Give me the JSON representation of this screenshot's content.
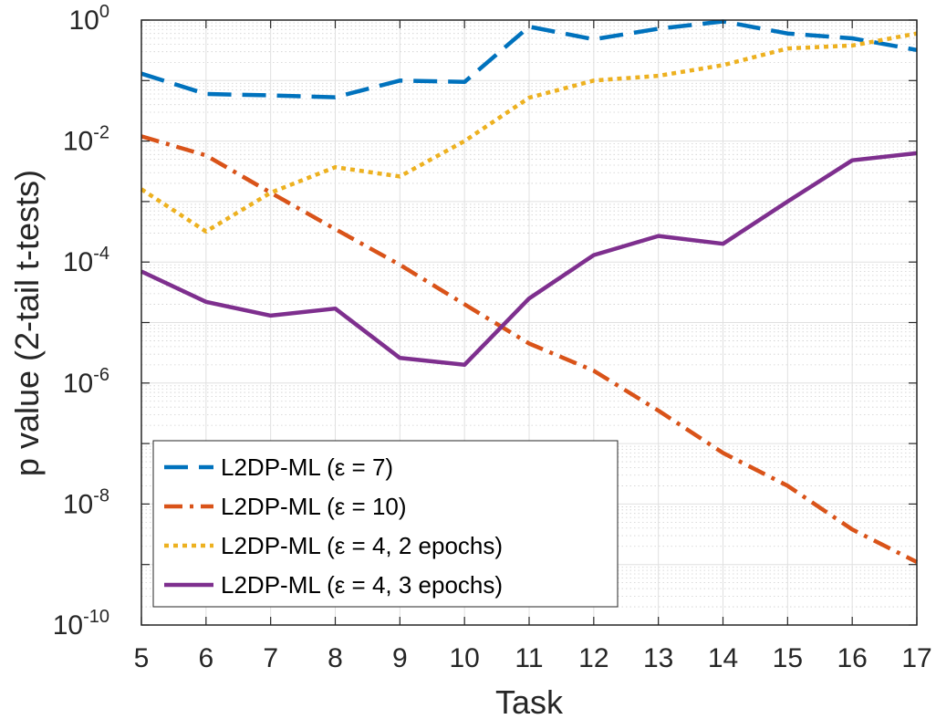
{
  "colors": {
    "background": "#ffffff",
    "axis": "#262626",
    "grid": "#e0e0e0",
    "minor_grid": "#cfcfcf"
  },
  "chart_data": {
    "type": "line",
    "title": "",
    "xlabel": "Task",
    "ylabel": "p value (2-tail t-tests)",
    "yscale": "log",
    "xlim": [
      5,
      17
    ],
    "ylim": [
      1e-10,
      1
    ],
    "grid": true,
    "minor_grid": true,
    "legend_position": "bottom-left",
    "x": [
      5,
      6,
      7,
      8,
      9,
      10,
      11,
      12,
      13,
      14,
      15,
      16,
      17
    ],
    "x_ticks": [
      "5",
      "6",
      "7",
      "8",
      "9",
      "10",
      "11",
      "12",
      "13",
      "14",
      "15",
      "16",
      "17"
    ],
    "y_ticks": [
      {
        "value": 1,
        "base": "10",
        "exp": "0"
      },
      {
        "value": 0.01,
        "base": "10",
        "exp": "-2"
      },
      {
        "value": 0.0001,
        "base": "10",
        "exp": "-4"
      },
      {
        "value": 1e-06,
        "base": "10",
        "exp": "-6"
      },
      {
        "value": 1e-08,
        "base": "10",
        "exp": "-8"
      },
      {
        "value": 1e-10,
        "base": "10",
        "exp": "-10"
      }
    ],
    "series": [
      {
        "name": "L2DP-ML (ε = 7)",
        "color": "#0072BD",
        "dash": "dashed",
        "values": [
          0.13,
          0.06,
          0.057,
          0.053,
          0.1,
          0.095,
          0.78,
          0.48,
          0.72,
          0.95,
          0.6,
          0.5,
          0.32
        ]
      },
      {
        "name": "L2DP-ML (ε = 10)",
        "color": "#D95319",
        "dash": "dashdot",
        "values": [
          0.012,
          0.0058,
          0.0014,
          0.00035,
          9e-05,
          2e-05,
          4.5e-06,
          1.6e-06,
          3.5e-07,
          7e-08,
          2e-08,
          3.8e-09,
          1.1e-09
        ]
      },
      {
        "name": "L2DP-ML (ε = 4, 2 epochs)",
        "color": "#EDB120",
        "dash": "dotted",
        "values": [
          0.0016,
          0.00032,
          0.0014,
          0.0037,
          0.0026,
          0.01,
          0.052,
          0.1,
          0.12,
          0.18,
          0.34,
          0.38,
          0.6
        ]
      },
      {
        "name": "L2DP-ML (ε = 4, 3 epochs)",
        "color": "#7E2F8E",
        "dash": "solid",
        "values": [
          7e-05,
          2.2e-05,
          1.3e-05,
          1.7e-05,
          2.6e-06,
          2e-06,
          2.5e-05,
          0.00013,
          0.00027,
          0.0002,
          0.001,
          0.0048,
          0.0063
        ]
      }
    ]
  }
}
